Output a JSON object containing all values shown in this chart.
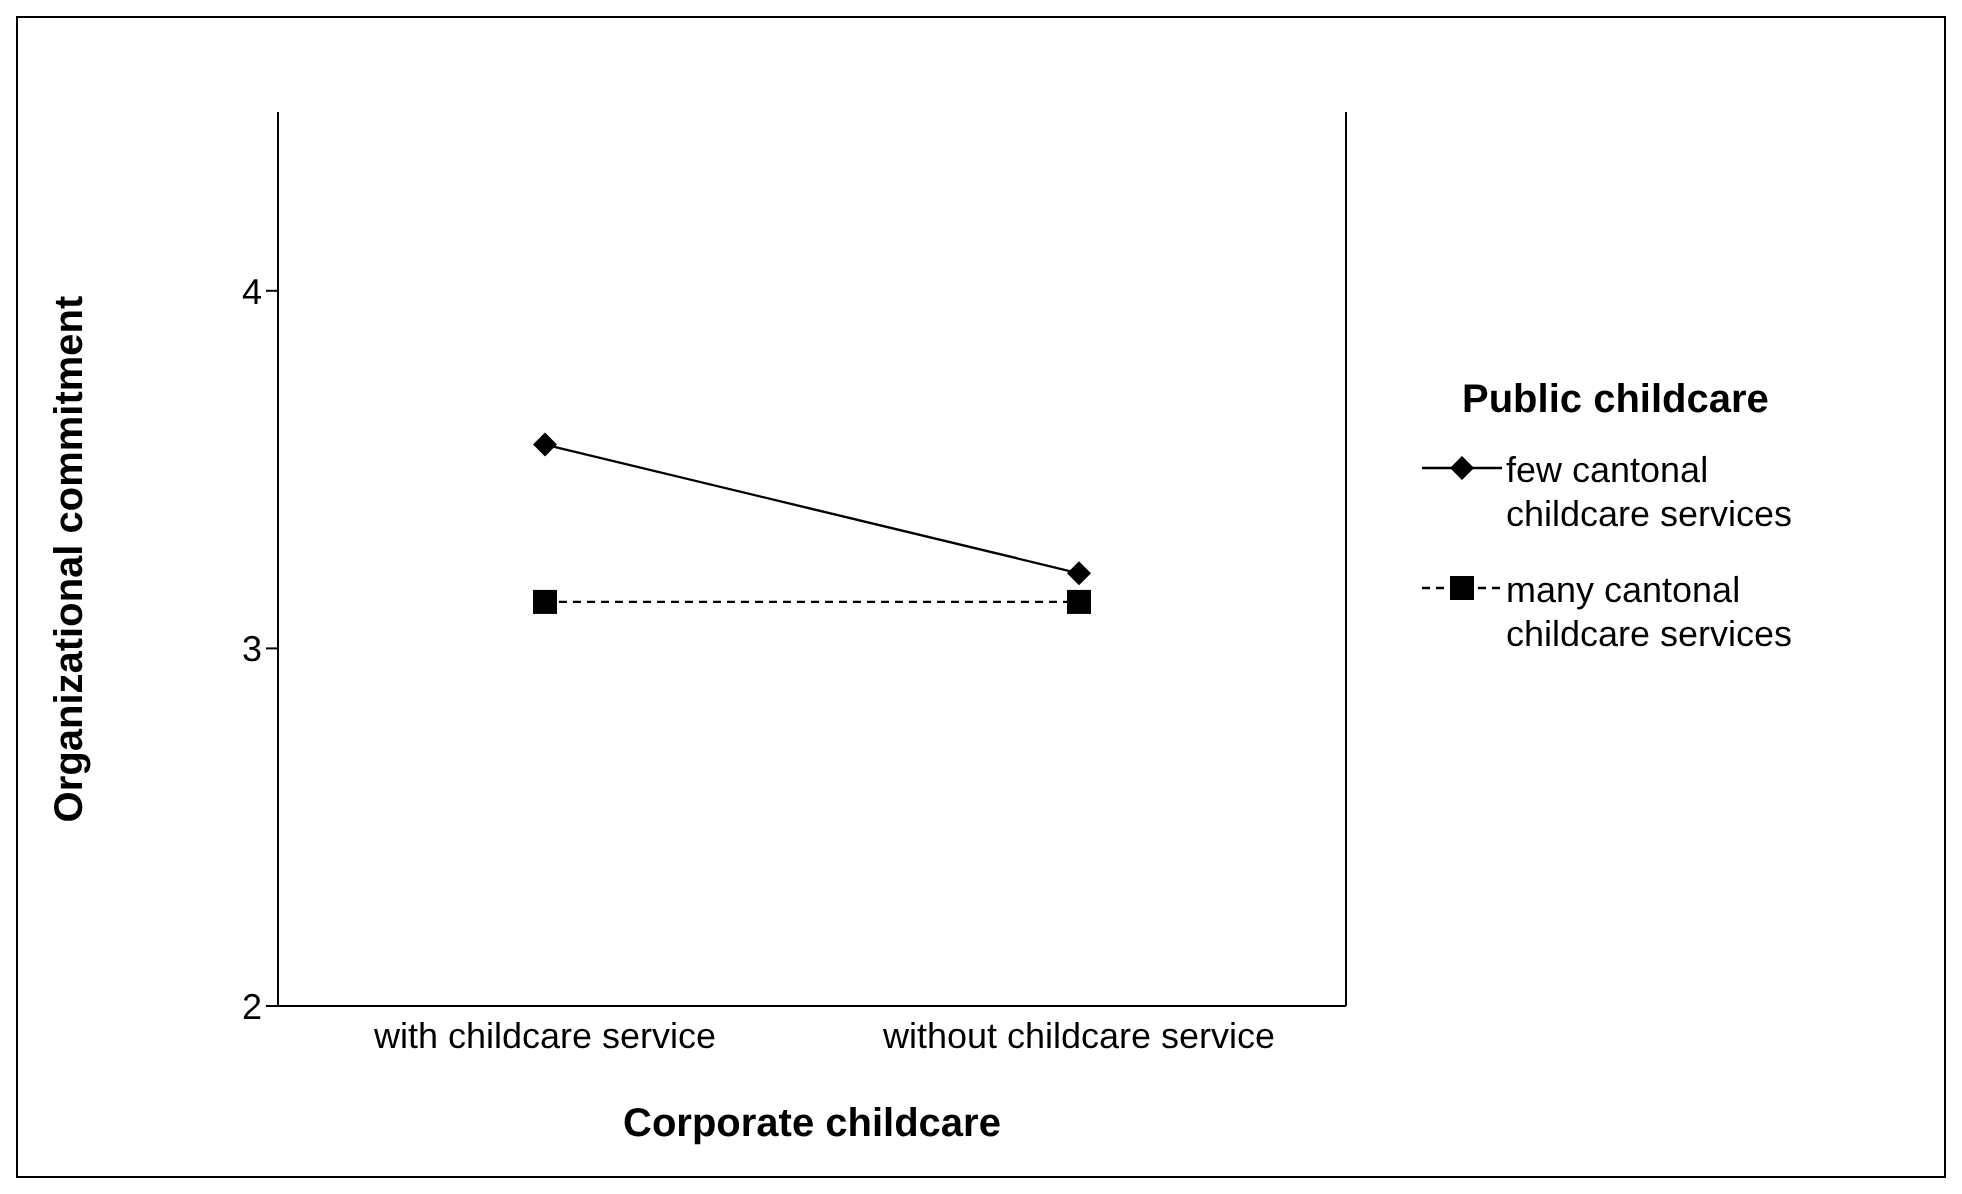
{
  "chart_data": {
    "type": "line",
    "xlabel": "Corporate childcare",
    "ylabel": "Organizational commitment",
    "legend_title": "Public childcare",
    "categories": [
      "with childcare service",
      "without childcare service"
    ],
    "series": [
      {
        "name": "few cantonal childcare services",
        "color": "#000000",
        "values": [
          3.57,
          3.21
        ],
        "marker": "diamond",
        "line_style": "solid"
      },
      {
        "name": "many cantonal childcare services",
        "color": "#000000",
        "values": [
          3.13,
          3.13
        ],
        "marker": "square",
        "line_style": "dashed"
      }
    ],
    "ylim": [
      2,
      4.5
    ],
    "yticks": [
      2,
      3,
      4
    ],
    "legend": "right"
  }
}
